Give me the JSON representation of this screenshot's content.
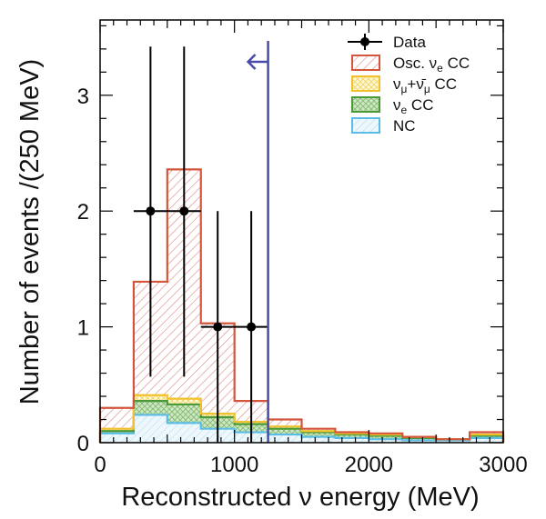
{
  "chart_data": {
    "type": "bar",
    "title": "",
    "xlabel": "Reconstructed ν energy (MeV)",
    "ylabel": "Number of events /(250 MeV)",
    "xlim": [
      0,
      3000
    ],
    "ylim": [
      0,
      3.65
    ],
    "x_ticks": [
      "0",
      "1000",
      "2000",
      "3000"
    ],
    "y_ticks": [
      "0",
      "1",
      "2",
      "3"
    ],
    "bin_edges": [
      0,
      250,
      500,
      750,
      1000,
      1250,
      1500,
      1750,
      2000,
      2250,
      2500,
      2750,
      3000
    ],
    "series": [
      {
        "name": "NC",
        "values": [
          0.08,
          0.24,
          0.17,
          0.12,
          0.09,
          0.07,
          0.05,
          0.04,
          0.03,
          0.02,
          0.02,
          0.04
        ],
        "color": "#5bbde6"
      },
      {
        "name": "νe CC",
        "values": [
          0.02,
          0.12,
          0.16,
          0.1,
          0.07,
          0.05,
          0.04,
          0.03,
          0.03,
          0.02,
          0.01,
          0.02
        ],
        "color": "#4a9a3a"
      },
      {
        "name": "νμ+ν̄μ CC",
        "values": [
          0.02,
          0.05,
          0.05,
          0.03,
          0.02,
          0.02,
          0.01,
          0.01,
          0.01,
          0.01,
          0.0,
          0.01
        ],
        "color": "#f2c12e"
      },
      {
        "name": "Osc. νe CC",
        "values": [
          0.18,
          0.98,
          1.98,
          0.78,
          0.18,
          0.06,
          0.02,
          0.01,
          0.01,
          0.0,
          0.0,
          0.02
        ],
        "color": "#d4553b"
      }
    ],
    "data_points": {
      "name": "Data",
      "x": [
        375,
        625,
        875,
        1125
      ],
      "y": [
        2,
        2,
        1,
        1
      ],
      "y_low": [
        0.57,
        0.57,
        0.0,
        0.0
      ],
      "y_high": [
        3.42,
        3.42,
        2.0,
        2.0
      ],
      "x_half_width": 125
    },
    "cut_line": {
      "x": 1250,
      "direction": "left"
    },
    "legend": {
      "position": "top-right",
      "entries": [
        {
          "label": "Data",
          "type": "marker"
        },
        {
          "label": "Osc. ν",
          "sub": "e",
          "suffix": " CC",
          "series": "Osc. νe CC"
        },
        {
          "label": "ν",
          "sub": "μ",
          "mid": "+ν̄",
          "sub2": "μ",
          "suffix": " CC",
          "series": "νμ+ν̄μ CC"
        },
        {
          "label": "ν",
          "sub": "e",
          "suffix": " CC",
          "series": "νe CC"
        },
        {
          "label": "NC",
          "series": "NC"
        }
      ]
    }
  }
}
